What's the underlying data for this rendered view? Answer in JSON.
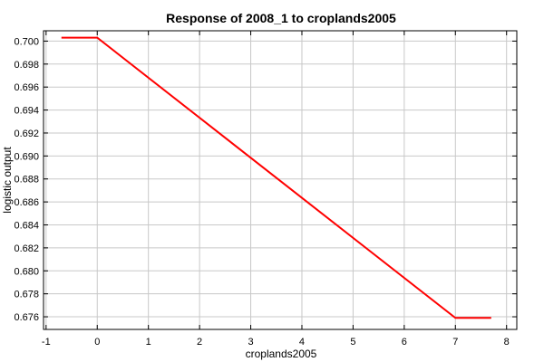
{
  "chart_data": {
    "type": "line",
    "title": "Response of 2008_1 to croplands2005",
    "xlabel": "croplands2005",
    "ylabel": "logistic output",
    "xlim": [
      -1.05,
      8.2
    ],
    "ylim": [
      0.6749,
      0.7009
    ],
    "xticks": [
      -1,
      0,
      1,
      2,
      3,
      4,
      5,
      6,
      7,
      8
    ],
    "xtick_labels": [
      "-1",
      "0",
      "1",
      "2",
      "3",
      "4",
      "5",
      "6",
      "7",
      "8"
    ],
    "yticks": [
      0.676,
      0.678,
      0.68,
      0.682,
      0.684,
      0.686,
      0.688,
      0.69,
      0.692,
      0.694,
      0.696,
      0.698,
      0.7
    ],
    "ytick_labels": [
      "0.676",
      "0.678",
      "0.680",
      "0.682",
      "0.684",
      "0.686",
      "0.688",
      "0.690",
      "0.692",
      "0.694",
      "0.696",
      "0.698",
      "0.700"
    ],
    "grid": true,
    "series": [
      {
        "color": "#ff0000",
        "x": [
          -0.7,
          0,
          7,
          7.7
        ],
        "y": [
          0.7003,
          0.7003,
          0.6759,
          0.6759
        ]
      }
    ]
  }
}
